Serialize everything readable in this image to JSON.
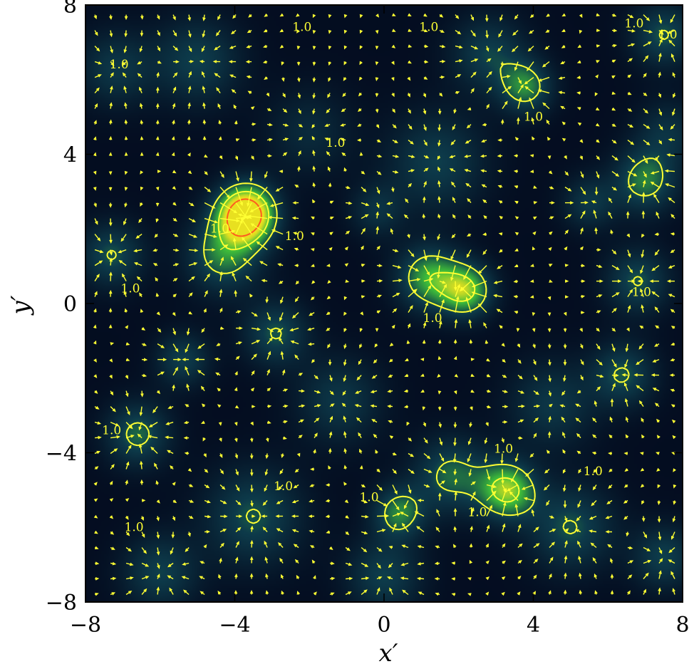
{
  "chart_data": {
    "type": "heatmap",
    "title": "",
    "xlabel": "x′",
    "ylabel": "y′",
    "xlim": [
      -8,
      8
    ],
    "ylim": [
      -8,
      8
    ],
    "xticks": [
      -8,
      -4,
      0,
      4,
      8
    ],
    "yticks": [
      -8,
      -4,
      0,
      4,
      8
    ],
    "x_tick_labels": [
      "−8",
      "−4",
      "0",
      "4",
      "8"
    ],
    "y_tick_labels": [
      "−8",
      "−4",
      "0",
      "4",
      "8"
    ],
    "grid": false,
    "colormap": {
      "low": "#02061a",
      "mid": "#0d3a4a",
      "high": "#3fbf3a",
      "peak": "#e8e020"
    },
    "contour_color": "#ffff33",
    "arrow_color": "#ffff33",
    "contour_level": 1.0,
    "contour_label": "1.0",
    "density_peaks": [
      {
        "x": -3.7,
        "y": 2.4,
        "amp": 2.6,
        "sigma": 0.55
      },
      {
        "x": -4.3,
        "y": 1.3,
        "amp": 1.1,
        "sigma": 0.7
      },
      {
        "x": -2.9,
        "y": -0.8,
        "amp": 0.9,
        "sigma": 0.6
      },
      {
        "x": 1.2,
        "y": 0.7,
        "amp": 1.3,
        "sigma": 0.6
      },
      {
        "x": 2.2,
        "y": 0.35,
        "amp": 1.5,
        "sigma": 0.5
      },
      {
        "x": 3.3,
        "y": -5.0,
        "amp": 1.6,
        "sigma": 0.55
      },
      {
        "x": 1.8,
        "y": -4.6,
        "amp": 1.0,
        "sigma": 0.7
      },
      {
        "x": 0.4,
        "y": -5.6,
        "amp": 1.1,
        "sigma": 0.5
      },
      {
        "x": 3.8,
        "y": 5.8,
        "amp": 1.1,
        "sigma": 0.5
      },
      {
        "x": 7.0,
        "y": 3.3,
        "amp": 1.1,
        "sigma": 0.6
      },
      {
        "x": 6.8,
        "y": 0.6,
        "amp": 0.9,
        "sigma": 0.6
      },
      {
        "x": 6.4,
        "y": -1.9,
        "amp": 0.9,
        "sigma": 0.6
      },
      {
        "x": -6.6,
        "y": -3.5,
        "amp": 1.0,
        "sigma": 0.6
      },
      {
        "x": -7.3,
        "y": 1.3,
        "amp": 0.9,
        "sigma": 0.6
      },
      {
        "x": -5.4,
        "y": -1.5,
        "amp": 0.8,
        "sigma": 0.5
      },
      {
        "x": 5.5,
        "y": 2.7,
        "amp": 0.7,
        "sigma": 0.5
      },
      {
        "x": -0.2,
        "y": 2.5,
        "amp": 0.6,
        "sigma": 0.5
      },
      {
        "x": -5.0,
        "y": 6.5,
        "amp": 0.8,
        "sigma": 0.8
      },
      {
        "x": 2.8,
        "y": 6.7,
        "amp": 0.8,
        "sigma": 0.7
      },
      {
        "x": 7.5,
        "y": 7.2,
        "amp": 0.9,
        "sigma": 0.6
      },
      {
        "x": -7.2,
        "y": 6.3,
        "amp": 0.7,
        "sigma": 0.7
      },
      {
        "x": 1.4,
        "y": 3.8,
        "amp": 0.8,
        "sigma": 0.9
      },
      {
        "x": -3.5,
        "y": -5.7,
        "amp": 0.9,
        "sigma": 0.9
      },
      {
        "x": -6.0,
        "y": -7.2,
        "amp": 0.8,
        "sigma": 0.7
      },
      {
        "x": 0.0,
        "y": -7.3,
        "amp": 0.8,
        "sigma": 0.7
      },
      {
        "x": 5.0,
        "y": -6.0,
        "amp": 0.9,
        "sigma": 0.8
      },
      {
        "x": 7.5,
        "y": -6.8,
        "amp": 0.8,
        "sigma": 0.6
      },
      {
        "x": 4.5,
        "y": -2.7,
        "amp": 0.7,
        "sigma": 0.8
      },
      {
        "x": -1.2,
        "y": -2.6,
        "amp": 0.7,
        "sigma": 0.8
      },
      {
        "x": 7.6,
        "y": 4.6,
        "amp": 0.6,
        "sigma": 0.6
      },
      {
        "x": -2.0,
        "y": 4.6,
        "amp": 0.5,
        "sigma": 0.8
      }
    ],
    "contour_labels": [
      {
        "x": -7.1,
        "y": 6.3
      },
      {
        "x": -6.8,
        "y": 0.3
      },
      {
        "x": -7.3,
        "y": -3.5
      },
      {
        "x": -4.4,
        "y": 1.9
      },
      {
        "x": -2.4,
        "y": 1.7
      },
      {
        "x": -1.3,
        "y": 4.2
      },
      {
        "x": -2.7,
        "y": -5.0
      },
      {
        "x": -6.7,
        "y": -6.1
      },
      {
        "x": -2.2,
        "y": 7.3
      },
      {
        "x": 1.2,
        "y": 7.3
      },
      {
        "x": 4.0,
        "y": 4.9
      },
      {
        "x": 6.7,
        "y": 7.4
      },
      {
        "x": 7.6,
        "y": 7.1
      },
      {
        "x": 6.9,
        "y": 0.2
      },
      {
        "x": 1.3,
        "y": -0.5
      },
      {
        "x": 3.2,
        "y": -4.0
      },
      {
        "x": 5.6,
        "y": -4.6
      },
      {
        "x": 2.5,
        "y": -5.7
      },
      {
        "x": -0.4,
        "y": -5.3
      }
    ]
  }
}
